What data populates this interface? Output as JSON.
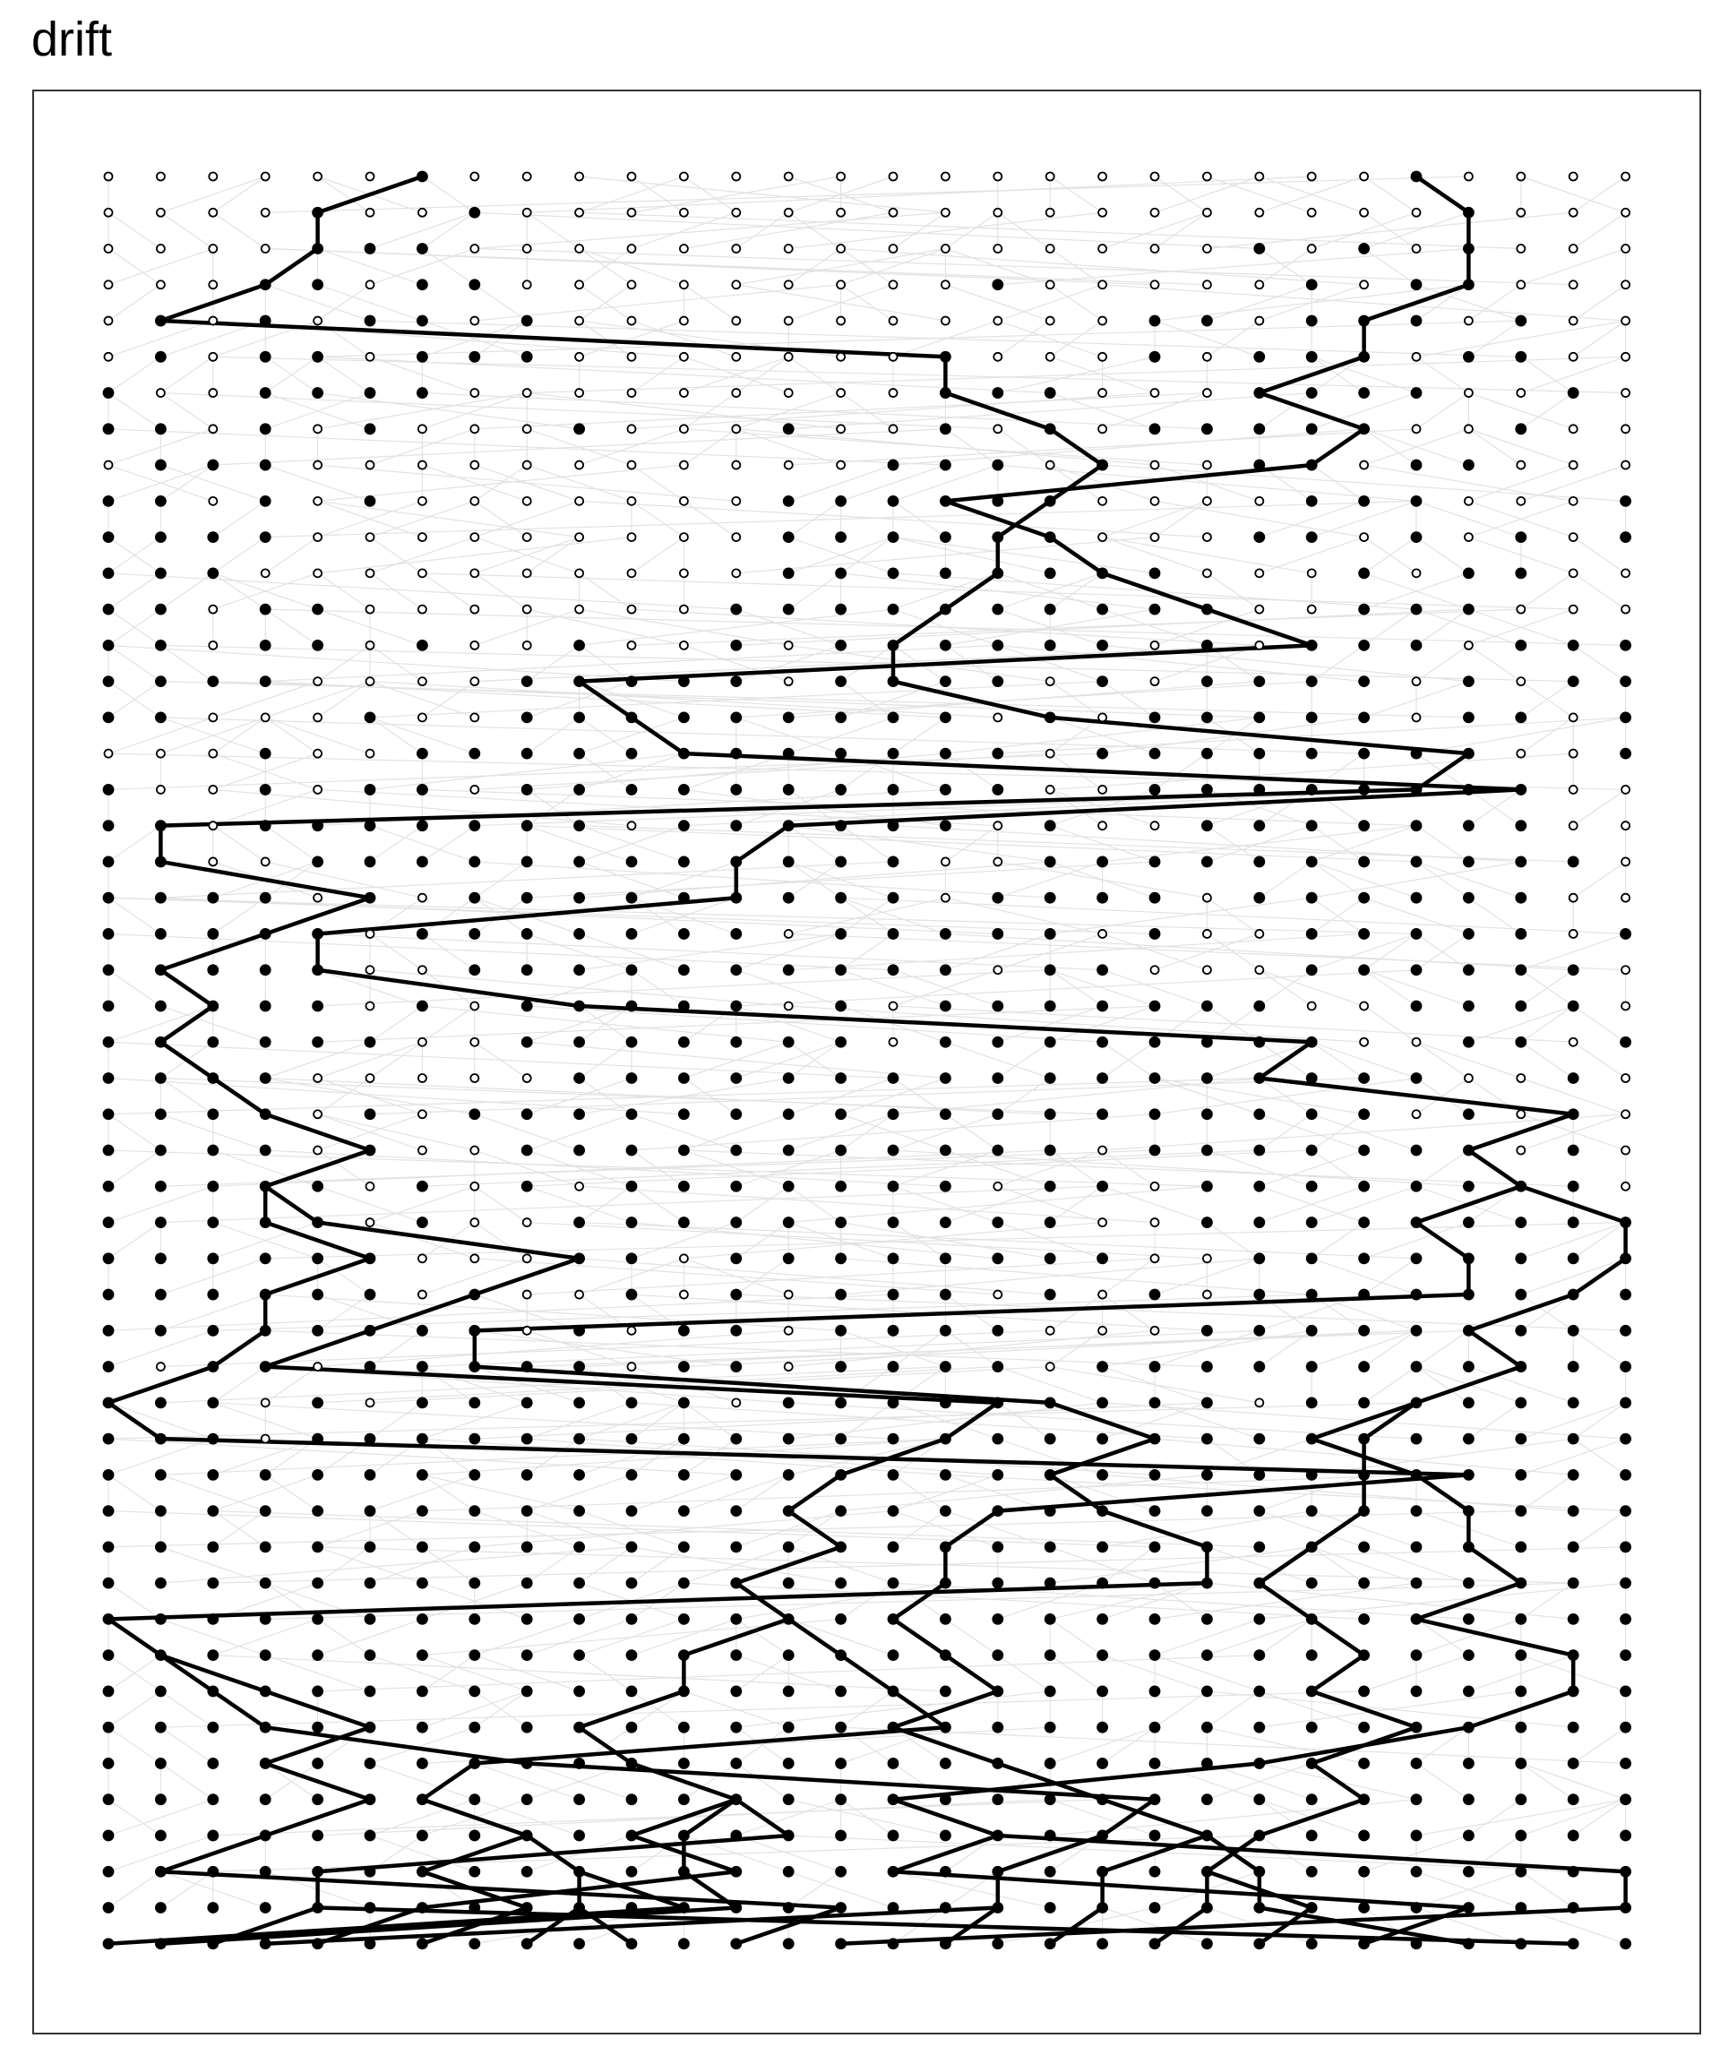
{
  "title": "drift"
}
